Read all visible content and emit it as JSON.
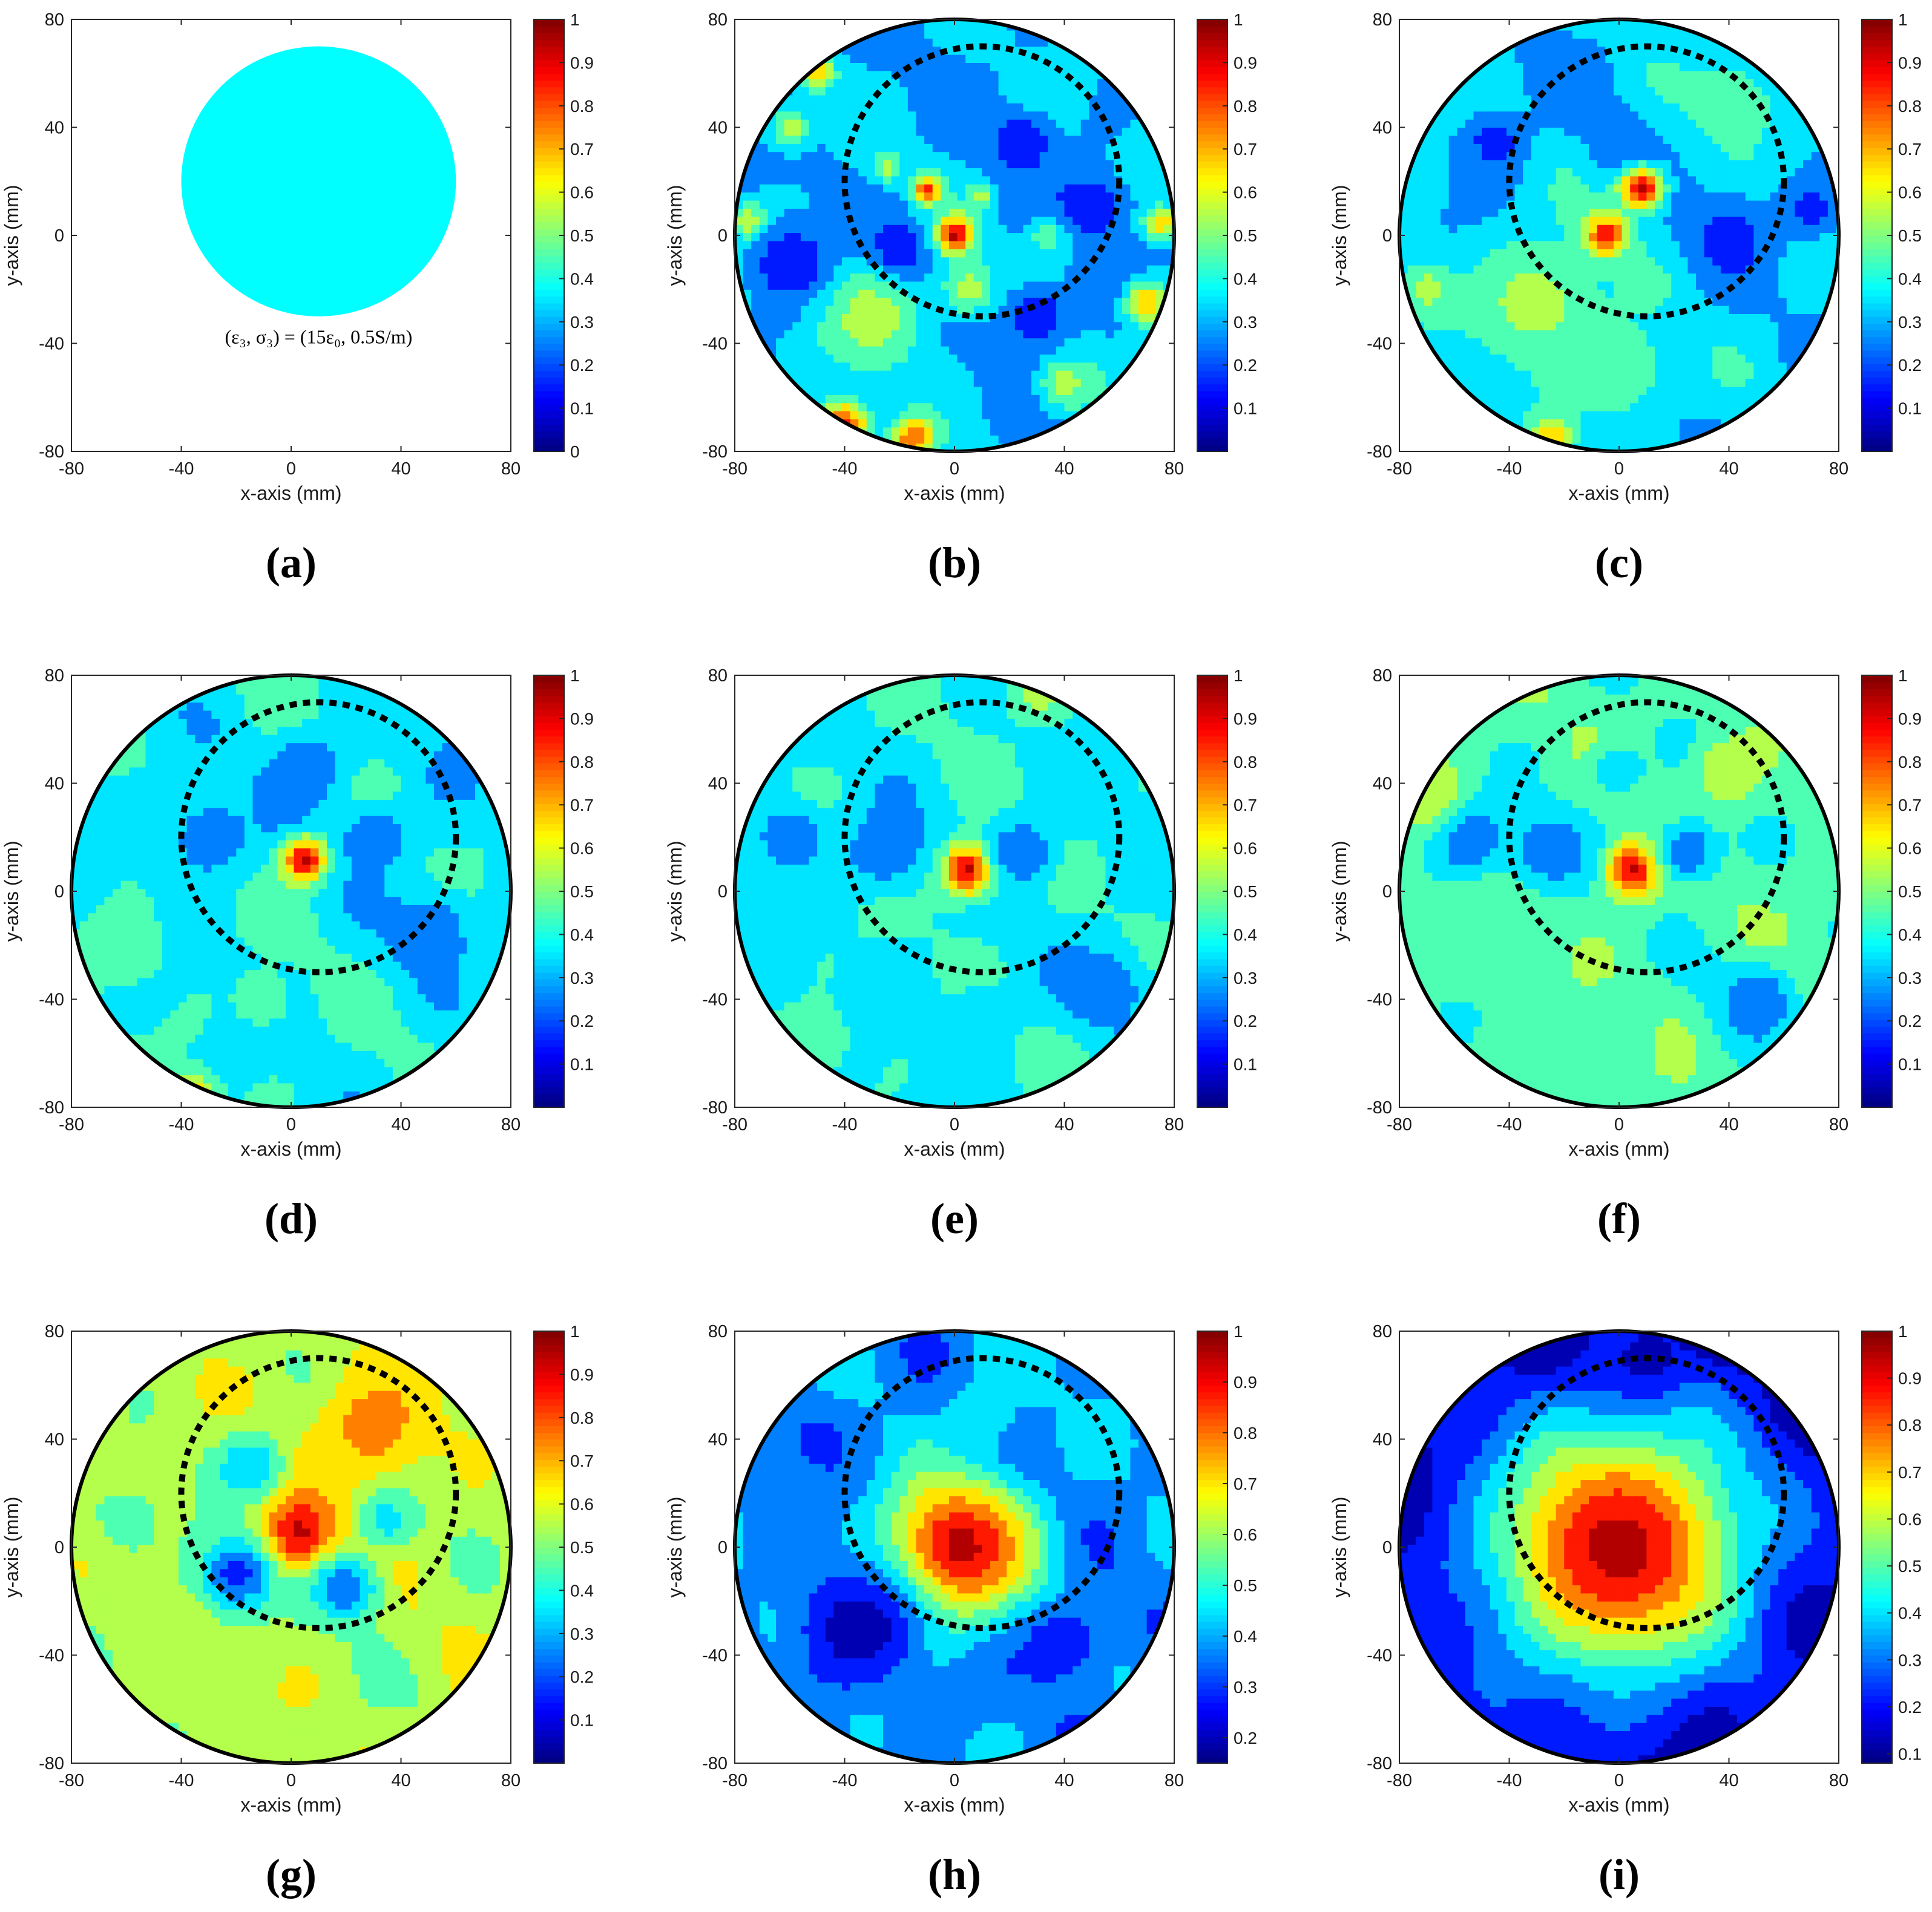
{
  "figure": {
    "panels": [
      "(a)",
      "(b)",
      "(c)",
      "(d)",
      "(e)",
      "(f)",
      "(g)",
      "(h)",
      "(i)"
    ]
  },
  "chart_data": [
    {
      "panel": "(a)",
      "type": "heatmap",
      "kind": "ground_truth",
      "xlabel": "x-axis (mm)",
      "ylabel": "y-axis (mm)",
      "xlim": [
        -80,
        80
      ],
      "ylim": [
        -80,
        80
      ],
      "xticks": [
        -80,
        -40,
        0,
        40,
        80
      ],
      "yticks": [
        -80,
        -40,
        0,
        40,
        80
      ],
      "colorbar": {
        "range": [
          0,
          1
        ],
        "ticks": [
          0,
          0.1,
          0.2,
          0.3,
          0.4,
          0.5,
          0.6,
          0.7,
          0.8,
          0.9,
          1
        ],
        "colormap": "jet"
      },
      "target": {
        "center": [
          10,
          20
        ],
        "radius": 50,
        "value": 0.4,
        "color": "#00ffff"
      },
      "annotation": "(ε₃, σ₃) = (15ε₀, 0.5S/m)"
    },
    {
      "panel": "(b)",
      "type": "heatmap",
      "kind": "reconstruction",
      "xlabel": "x-axis (mm)",
      "ylabel": "y-axis (mm)",
      "xlim": [
        -80,
        80
      ],
      "ylim": [
        -80,
        80
      ],
      "xticks": [
        -80,
        -40,
        0,
        40,
        80
      ],
      "yticks": [
        -80,
        -40,
        0,
        40,
        80
      ],
      "colorbar": {
        "range": [
          0,
          1
        ],
        "ticks": [
          0.1,
          0.2,
          0.3,
          0.4,
          0.5,
          0.6,
          0.7,
          0.8,
          0.9,
          1
        ],
        "colormap": "jet"
      },
      "imaging_domain_radius": 80,
      "true_boundary": {
        "center": [
          10,
          20
        ],
        "radius": 50,
        "style": "dotted"
      },
      "background": 0.3,
      "blobs": [
        [
          0,
          0,
          7,
          0.95
        ],
        [
          -10,
          17,
          5,
          0.85
        ],
        [
          10,
          15,
          4,
          0.6
        ],
        [
          -40,
          -70,
          9,
          0.85
        ],
        [
          -15,
          -75,
          8,
          0.8
        ],
        [
          -75,
          5,
          7,
          0.6
        ],
        [
          75,
          5,
          6,
          0.7
        ],
        [
          -25,
          25,
          5,
          0.55
        ],
        [
          5,
          -20,
          10,
          0.55
        ],
        [
          -30,
          -30,
          20,
          0.55
        ],
        [
          40,
          -55,
          10,
          0.55
        ],
        [
          -60,
          40,
          8,
          0.55
        ],
        [
          35,
          0,
          8,
          0.5
        ],
        [
          70,
          -25,
          8,
          0.7
        ],
        [
          -50,
          60,
          6,
          0.7
        ],
        [
          25,
          35,
          10,
          0.1
        ],
        [
          -20,
          -5,
          10,
          0.1
        ],
        [
          50,
          10,
          12,
          0.1
        ],
        [
          -60,
          -10,
          14,
          0.1
        ],
        [
          30,
          -30,
          12,
          0.1
        ]
      ]
    },
    {
      "panel": "(c)",
      "type": "heatmap",
      "kind": "reconstruction",
      "xlabel": "x-axis (mm)",
      "ylabel": "y-axis (mm)",
      "xlim": [
        -80,
        80
      ],
      "ylim": [
        -80,
        80
      ],
      "xticks": [
        -80,
        -40,
        0,
        40,
        80
      ],
      "yticks": [
        -80,
        -40,
        0,
        40,
        80
      ],
      "colorbar": {
        "range": [
          0,
          1
        ],
        "ticks": [
          0.1,
          0.2,
          0.3,
          0.4,
          0.5,
          0.6,
          0.7,
          0.8,
          0.9,
          1
        ],
        "colormap": "jet"
      },
      "imaging_domain_radius": 80,
      "true_boundary": {
        "center": [
          10,
          20
        ],
        "radius": 50,
        "style": "dotted"
      },
      "background": 0.32,
      "blobs": [
        [
          8,
          18,
          8,
          0.95
        ],
        [
          -5,
          0,
          8,
          0.9
        ],
        [
          -30,
          -25,
          24,
          0.55
        ],
        [
          0,
          -50,
          18,
          0.5
        ],
        [
          40,
          50,
          20,
          0.45
        ],
        [
          -25,
          -75,
          8,
          0.7
        ],
        [
          -70,
          -20,
          10,
          0.55
        ],
        [
          -45,
          35,
          12,
          0.15
        ],
        [
          40,
          0,
          14,
          0.15
        ],
        [
          -20,
          60,
          12,
          0.2
        ],
        [
          70,
          10,
          10,
          0.15
        ],
        [
          0,
          35,
          10,
          0.2
        ]
      ]
    },
    {
      "panel": "(d)",
      "type": "heatmap",
      "kind": "reconstruction",
      "xlabel": "x-axis (mm)",
      "ylabel": "y-axis (mm)",
      "xlim": [
        -80,
        80
      ],
      "ylim": [
        -80,
        80
      ],
      "xticks": [
        -80,
        -40,
        0,
        40,
        80
      ],
      "yticks": [
        -80,
        -40,
        0,
        40,
        80
      ],
      "colorbar": {
        "range": [
          0,
          1
        ],
        "ticks": [
          0.1,
          0.2,
          0.3,
          0.4,
          0.5,
          0.6,
          0.7,
          0.8,
          0.9,
          1
        ],
        "colormap": "jet"
      },
      "imaging_domain_radius": 80,
      "true_boundary": {
        "center": [
          10,
          20
        ],
        "radius": 50,
        "style": "dotted"
      },
      "background": 0.38,
      "blobs": [
        [
          5,
          12,
          8,
          0.95
        ],
        [
          -30,
          20,
          14,
          0.2
        ],
        [
          30,
          20,
          12,
          0.2
        ],
        [
          5,
          45,
          14,
          0.2
        ],
        [
          50,
          -15,
          15,
          0.2
        ],
        [
          -60,
          -20,
          14,
          0.5
        ],
        [
          -35,
          -75,
          8,
          0.65
        ],
        [
          -10,
          -40,
          10,
          0.5
        ],
        [
          60,
          45,
          10,
          0.2
        ]
      ]
    },
    {
      "panel": "(e)",
      "type": "heatmap",
      "kind": "reconstruction",
      "xlabel": "x-axis (mm)",
      "ylabel": "y-axis (mm)",
      "xlim": [
        -80,
        80
      ],
      "ylim": [
        -80,
        80
      ],
      "xticks": [
        -80,
        -40,
        0,
        40,
        80
      ],
      "yticks": [
        -80,
        -40,
        0,
        40,
        80
      ],
      "colorbar": {
        "range": [
          0,
          1
        ],
        "ticks": [
          0.1,
          0.2,
          0.3,
          0.4,
          0.5,
          0.6,
          0.7,
          0.8,
          0.9,
          1
        ],
        "colormap": "jet"
      },
      "imaging_domain_radius": 80,
      "true_boundary": {
        "center": [
          10,
          20
        ],
        "radius": 50,
        "style": "dotted"
      },
      "background": 0.38,
      "blobs": [
        [
          5,
          8,
          10,
          0.95
        ],
        [
          -25,
          15,
          14,
          0.2
        ],
        [
          25,
          15,
          12,
          0.2
        ],
        [
          -60,
          20,
          12,
          0.2
        ],
        [
          55,
          -35,
          14,
          0.2
        ],
        [
          30,
          75,
          12,
          0.55
        ],
        [
          -50,
          -55,
          12,
          0.5
        ],
        [
          45,
          40,
          12,
          0.3
        ],
        [
          10,
          -45,
          14,
          0.35
        ]
      ]
    },
    {
      "panel": "(f)",
      "type": "heatmap",
      "kind": "reconstruction",
      "xlabel": "x-axis (mm)",
      "ylabel": "y-axis (mm)",
      "xlim": [
        -80,
        80
      ],
      "ylim": [
        -80,
        80
      ],
      "xticks": [
        -80,
        -40,
        0,
        40,
        80
      ],
      "yticks": [
        -80,
        -40,
        0,
        40,
        80
      ],
      "colorbar": {
        "range": [
          0,
          1
        ],
        "ticks": [
          0.1,
          0.2,
          0.3,
          0.4,
          0.5,
          0.6,
          0.7,
          0.8,
          0.9,
          1
        ],
        "colormap": "jet"
      },
      "imaging_domain_radius": 80,
      "true_boundary": {
        "center": [
          10,
          20
        ],
        "radius": 50,
        "style": "dotted"
      },
      "background": 0.45,
      "blobs": [
        [
          5,
          8,
          10,
          0.95
        ],
        [
          -25,
          15,
          14,
          0.2
        ],
        [
          25,
          15,
          12,
          0.2
        ],
        [
          -55,
          20,
          14,
          0.2
        ],
        [
          50,
          -40,
          14,
          0.2
        ],
        [
          40,
          45,
          12,
          0.6
        ],
        [
          -70,
          35,
          12,
          0.6
        ],
        [
          -10,
          -60,
          16,
          0.45
        ],
        [
          0,
          45,
          10,
          0.3
        ]
      ]
    },
    {
      "panel": "(g)",
      "type": "heatmap",
      "kind": "reconstruction",
      "xlabel": "x-axis (mm)",
      "ylabel": "y-axis (mm)",
      "xlim": [
        -80,
        80
      ],
      "ylim": [
        -80,
        80
      ],
      "xticks": [
        -80,
        -40,
        0,
        40,
        80
      ],
      "yticks": [
        -80,
        -40,
        0,
        40,
        80
      ],
      "colorbar": {
        "range": [
          0,
          1
        ],
        "ticks": [
          0.1,
          0.2,
          0.3,
          0.4,
          0.5,
          0.6,
          0.7,
          0.8,
          0.9,
          1
        ],
        "colormap": "jet"
      },
      "imaging_domain_radius": 80,
      "true_boundary": {
        "center": [
          10,
          20
        ],
        "radius": 50,
        "style": "dotted"
      },
      "background": 0.55,
      "blobs": [
        [
          2,
          5,
          14,
          0.95
        ],
        [
          30,
          45,
          22,
          0.75
        ],
        [
          -20,
          -10,
          14,
          0.15
        ],
        [
          20,
          -15,
          12,
          0.2
        ],
        [
          -15,
          30,
          12,
          0.3
        ],
        [
          35,
          10,
          10,
          0.35
        ],
        [
          -60,
          10,
          14,
          0.45
        ]
      ]
    },
    {
      "panel": "(h)",
      "type": "heatmap",
      "kind": "reconstruction",
      "xlabel": "x-axis (mm)",
      "ylabel": "y-axis (mm)",
      "xlim": [
        -80,
        80
      ],
      "ylim": [
        -80,
        80
      ],
      "xticks": [
        -80,
        -40,
        0,
        40,
        80
      ],
      "yticks": [
        -80,
        -40,
        0,
        40,
        80
      ],
      "colorbar": {
        "range": [
          0.15,
          1
        ],
        "ticks": [
          0.2,
          0.3,
          0.4,
          0.5,
          0.6,
          0.7,
          0.8,
          0.9,
          1
        ],
        "colormap": "jet"
      },
      "imaging_domain_radius": 80,
      "true_boundary": {
        "center": [
          10,
          20
        ],
        "radius": 50,
        "style": "dotted"
      },
      "background": 0.38,
      "blobs": [
        [
          2,
          0,
          26,
          0.95
        ],
        [
          -35,
          -30,
          22,
          0.18
        ],
        [
          40,
          -35,
          16,
          0.25
        ],
        [
          -50,
          40,
          14,
          0.3
        ],
        [
          10,
          50,
          16,
          0.45
        ]
      ]
    },
    {
      "panel": "(i)",
      "type": "heatmap",
      "kind": "reconstruction",
      "xlabel": "x-axis (mm)",
      "ylabel": "y-axis (mm)",
      "xlim": [
        -80,
        80
      ],
      "ylim": [
        -80,
        80
      ],
      "xticks": [
        -80,
        -40,
        0,
        40,
        80
      ],
      "yticks": [
        -80,
        -40,
        0,
        40,
        80
      ],
      "colorbar": {
        "range": [
          0.08,
          1
        ],
        "ticks": [
          0.1,
          0.2,
          0.3,
          0.4,
          0.5,
          0.6,
          0.7,
          0.8,
          0.9,
          1
        ],
        "colormap": "jet"
      },
      "imaging_domain_radius": 80,
      "true_boundary": {
        "center": [
          10,
          20
        ],
        "radius": 50,
        "style": "dotted"
      },
      "background": 0.12,
      "blobs": [
        [
          0,
          0,
          48,
          0.95
        ],
        [
          10,
          70,
          12,
          0.12
        ]
      ]
    }
  ]
}
